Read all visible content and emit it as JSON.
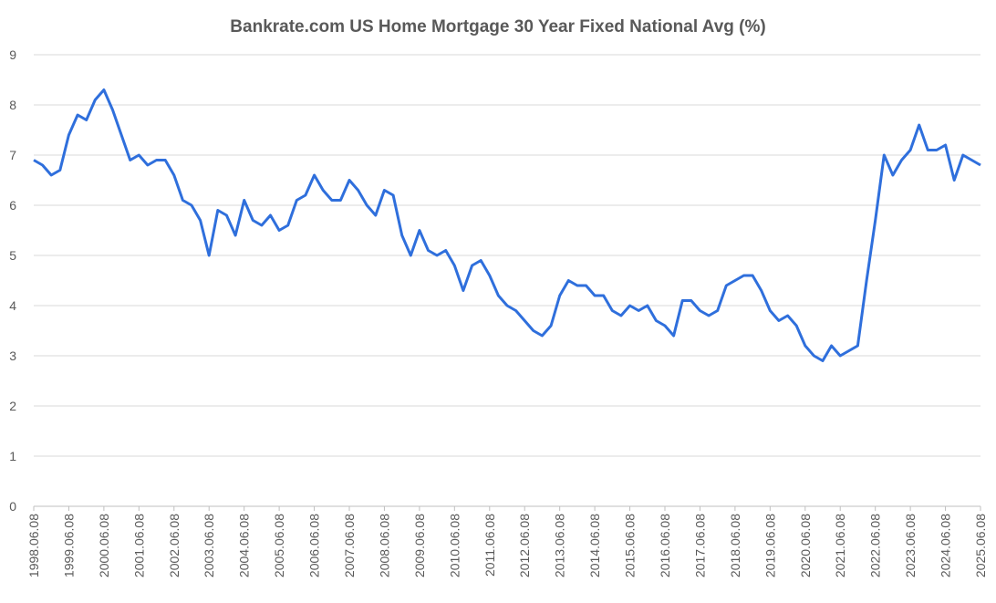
{
  "chart_data": {
    "type": "line",
    "title": "Bankrate.com US Home Mortgage 30 Year Fixed National Avg  (%)",
    "color": "#2f6fdc",
    "x": [
      "1998.06.08",
      "1998.09.08",
      "1998.12.08",
      "1999.03.08",
      "1999.06.08",
      "1999.09.08",
      "1999.12.08",
      "2000.03.08",
      "2000.06.08",
      "2000.09.08",
      "2000.12.08",
      "2001.03.08",
      "2001.06.08",
      "2001.09.08",
      "2001.12.08",
      "2002.03.08",
      "2002.06.08",
      "2002.09.08",
      "2002.12.08",
      "2003.03.08",
      "2003.06.08",
      "2003.09.08",
      "2003.12.08",
      "2004.03.08",
      "2004.06.08",
      "2004.09.08",
      "2004.12.08",
      "2005.03.08",
      "2005.06.08",
      "2005.09.08",
      "2005.12.08",
      "2006.03.08",
      "2006.06.08",
      "2006.09.08",
      "2006.12.08",
      "2007.03.08",
      "2007.06.08",
      "2007.09.08",
      "2007.12.08",
      "2008.03.08",
      "2008.06.08",
      "2008.09.08",
      "2008.12.08",
      "2009.03.08",
      "2009.06.08",
      "2009.09.08",
      "2009.12.08",
      "2010.03.08",
      "2010.06.08",
      "2010.09.08",
      "2010.12.08",
      "2011.03.08",
      "2011.06.08",
      "2011.09.08",
      "2011.12.08",
      "2012.03.08",
      "2012.06.08",
      "2012.09.08",
      "2012.12.08",
      "2013.03.08",
      "2013.06.08",
      "2013.09.08",
      "2013.12.08",
      "2014.03.08",
      "2014.06.08",
      "2014.09.08",
      "2014.12.08",
      "2015.03.08",
      "2015.06.08",
      "2015.09.08",
      "2015.12.08",
      "2016.03.08",
      "2016.06.08",
      "2016.09.08",
      "2016.12.08",
      "2017.03.08",
      "2017.06.08",
      "2017.09.08",
      "2017.12.08",
      "2018.03.08",
      "2018.06.08",
      "2018.09.08",
      "2018.12.08",
      "2019.03.08",
      "2019.06.08",
      "2019.09.08",
      "2019.12.08",
      "2020.03.08",
      "2020.06.08",
      "2020.09.08",
      "2020.12.08",
      "2021.03.08",
      "2021.06.08",
      "2021.09.08",
      "2021.12.08",
      "2022.03.08",
      "2022.06.08",
      "2022.09.08",
      "2022.12.08",
      "2023.03.08",
      "2023.06.08",
      "2023.09.08",
      "2023.12.08",
      "2024.03.08",
      "2024.06.08",
      "2024.09.08",
      "2024.12.08",
      "2025.03.08",
      "2025.06.08"
    ],
    "values": [
      6.9,
      6.8,
      6.6,
      6.7,
      7.4,
      7.8,
      7.7,
      8.1,
      8.3,
      7.9,
      7.4,
      6.9,
      7.0,
      6.8,
      6.9,
      6.9,
      6.6,
      6.1,
      6.0,
      5.7,
      5.0,
      5.9,
      5.8,
      5.4,
      6.1,
      5.7,
      5.6,
      5.8,
      5.5,
      5.6,
      6.1,
      6.2,
      6.6,
      6.3,
      6.1,
      6.1,
      6.5,
      6.3,
      6.0,
      5.8,
      6.3,
      6.2,
      5.4,
      5.0,
      5.5,
      5.1,
      5.0,
      5.1,
      4.8,
      4.3,
      4.8,
      4.9,
      4.6,
      4.2,
      4.0,
      3.9,
      3.7,
      3.5,
      3.4,
      3.6,
      4.2,
      4.5,
      4.4,
      4.4,
      4.2,
      4.2,
      3.9,
      3.8,
      4.0,
      3.9,
      4.0,
      3.7,
      3.6,
      3.4,
      4.1,
      4.1,
      3.9,
      3.8,
      3.9,
      4.4,
      4.5,
      4.6,
      4.6,
      4.3,
      3.9,
      3.7,
      3.8,
      3.6,
      3.2,
      3.0,
      2.9,
      3.2,
      3.0,
      3.1,
      3.2,
      4.5,
      5.7,
      7.0,
      6.6,
      6.9,
      7.1,
      7.6,
      7.1,
      7.1,
      7.2,
      6.5,
      7.0,
      6.9,
      6.8
    ],
    "xlim": [
      "1998.06.08",
      "2025.06.08"
    ],
    "xticks": [
      "1998.06.08",
      "1999.06.08",
      "2000.06.08",
      "2001.06.08",
      "2002.06.08",
      "2003.06.08",
      "2004.06.08",
      "2005.06.08",
      "2006.06.08",
      "2007.06.08",
      "2008.06.08",
      "2009.06.08",
      "2010.06.08",
      "2011.06.08",
      "2012.06.08",
      "2013.06.08",
      "2014.06.08",
      "2015.06.08",
      "2016.06.08",
      "2017.06.08",
      "2018.06.08",
      "2019.06.08",
      "2020.06.08",
      "2021.06.08",
      "2022.06.08",
      "2023.06.08",
      "2024.06.08",
      "2025.06.08"
    ],
    "ylim": [
      0,
      9
    ],
    "yticks": [
      0,
      1,
      2,
      3,
      4,
      5,
      6,
      7,
      8,
      9
    ],
    "grid": true
  }
}
